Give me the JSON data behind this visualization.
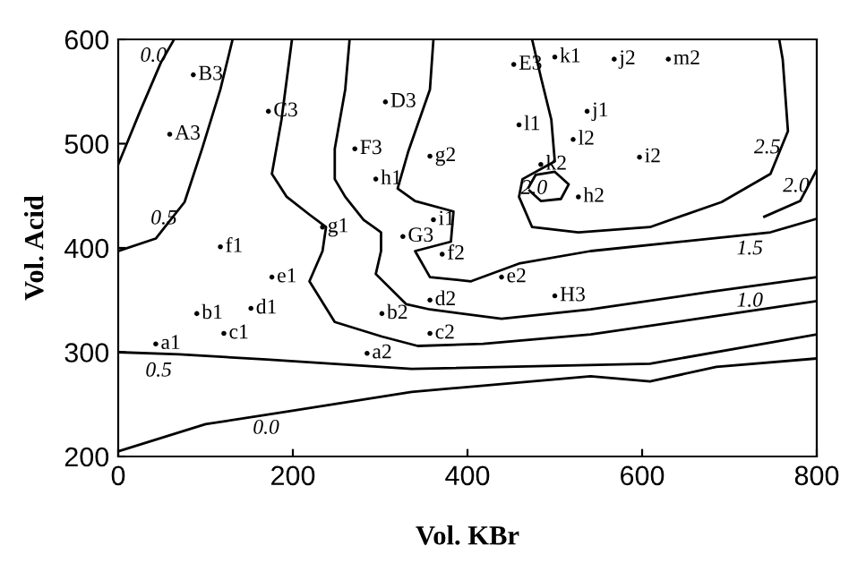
{
  "chart_data": {
    "type": "line",
    "xlabel": "Vol. KBr",
    "ylabel": "Vol. Acid",
    "xlim": [
      0,
      800
    ],
    "ylim": [
      200,
      600
    ],
    "xticks": [
      0,
      200,
      400,
      600,
      800
    ],
    "yticks": [
      200,
      300,
      400,
      500,
      600
    ],
    "grid": false,
    "marker": "none",
    "line_style": "solid",
    "series": [
      {
        "color": "#000000",
        "x": [
          0,
          100,
          193,
          336,
          541,
          609,
          685,
          800
        ],
        "values": [
          205,
          231,
          243,
          262,
          277,
          272,
          286,
          294
        ]
      },
      {
        "color": "#000000",
        "x": [
          0,
          70,
          170,
          336,
          609,
          800
        ],
        "values": [
          300,
          298,
          293,
          284,
          289,
          317
        ]
      },
      {
        "color": "#000000",
        "x": [
          0,
          25,
          49,
          64
        ],
        "values": [
          480,
          531,
          578,
          600
        ]
      },
      {
        "color": "#000000",
        "x": [
          0,
          43,
          76,
          96,
          117,
          131
        ],
        "values": [
          397,
          409,
          444,
          495,
          552,
          600
        ]
      },
      {
        "color": "#000000",
        "x": [
          199,
          187,
          176,
          193,
          219,
          238,
          234,
          219,
          248,
          302,
          343,
          418,
          541,
          679,
          800
        ],
        "values": [
          600,
          523,
          471,
          449,
          432,
          420,
          397,
          368,
          329,
          315,
          306,
          308,
          317,
          334,
          349
        ]
      },
      {
        "color": "#000000",
        "x": [
          265,
          260,
          248,
          248,
          260,
          281,
          301,
          301,
          295,
          330,
          357,
          439,
          541,
          679,
          800
        ],
        "values": [
          600,
          552,
          495,
          466,
          449,
          427,
          415,
          397,
          375,
          346,
          341,
          332,
          341,
          358,
          372
        ]
      },
      {
        "color": "#000000",
        "x": [
          361,
          357,
          332,
          320,
          340,
          384,
          381,
          340,
          357,
          404,
          459,
          541,
          747,
          800
        ],
        "values": [
          600,
          552,
          492,
          457,
          445,
          435,
          406,
          397,
          372,
          368,
          385,
          397,
          415,
          428
        ]
      },
      {
        "color": "#000000",
        "x": [
          474,
          484,
          496,
          500,
          463,
          459,
          474,
          527,
          609,
          691,
          747,
          767,
          761,
          757
        ],
        "values": [
          600,
          564,
          523,
          483,
          466,
          449,
          420,
          415,
          420,
          444,
          471,
          512,
          581,
          600
        ]
      },
      {
        "color": "#000000",
        "x": [
          800,
          781,
          740
        ],
        "values": [
          475,
          445,
          430
        ]
      },
      {
        "color": "#000000",
        "x": [
          470,
          478,
          500,
          516,
          507,
          484,
          471
        ],
        "values": [
          458,
          470,
          473,
          461,
          447,
          445,
          455
        ]
      },
      {
        "type": "scatter",
        "marker": "circle",
        "color": "#000000",
        "x": [
          59,
          86,
          172,
          306,
          453,
          271,
          326,
          500,
          43,
          90,
          121,
          152,
          176,
          117,
          234,
          295,
          361,
          537,
          500,
          459,
          285,
          302,
          357,
          357,
          439,
          371,
          357,
          527,
          597,
          568,
          484,
          521,
          630
        ],
        "values": [
          509,
          566,
          531,
          540,
          576,
          495,
          411,
          354,
          308,
          337,
          318,
          342,
          372,
          401,
          420,
          466,
          427,
          531,
          583,
          518,
          299,
          337,
          318,
          350,
          372,
          394,
          488,
          449,
          487,
          581,
          480,
          504,
          581
        ],
        "value_labels": [
          "A3",
          "B3",
          "C3",
          "D3",
          "E3",
          "F3",
          "G3",
          "H3",
          "a1",
          "b1",
          "c1",
          "d1",
          "e1",
          "f1",
          "g1",
          "h1",
          "i1",
          "j1",
          "k1",
          "l1",
          "a2",
          "b2",
          "c2",
          "d2",
          "e2",
          "f2",
          "g2",
          "h2",
          "i2",
          "j2",
          "k2",
          "l2",
          "m2"
        ]
      }
    ],
    "annotations": [
      {
        "text": "0.0",
        "x": 64,
        "y": 600
      },
      {
        "text": "0.5",
        "x": 76,
        "y": 444
      },
      {
        "text": "0.5",
        "x": 70,
        "y": 298
      },
      {
        "text": "0.0",
        "x": 193,
        "y": 243
      },
      {
        "text": "2.0",
        "x": 500,
        "y": 473
      },
      {
        "text": "2.5",
        "x": 767,
        "y": 512
      },
      {
        "text": "2.0",
        "x": 800,
        "y": 475
      },
      {
        "text": "1.5",
        "x": 747,
        "y": 415
      },
      {
        "text": "1.0",
        "x": 747,
        "y": 365
      }
    ]
  }
}
